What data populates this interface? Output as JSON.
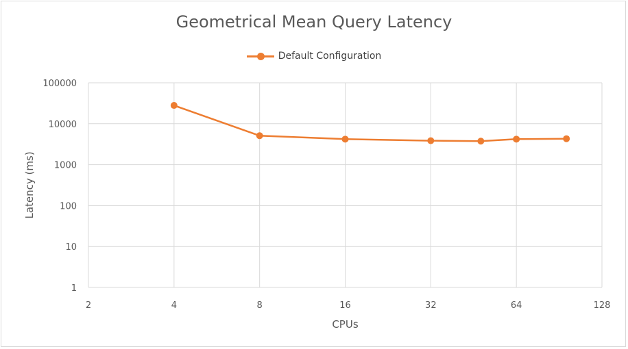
{
  "chart_data": {
    "type": "line",
    "title": "Geometrical Mean Query Latency",
    "xlabel": "CPUs",
    "ylabel": "Latency (ms)",
    "x_scale": "log2",
    "y_scale": "log10",
    "xlim": [
      2,
      128
    ],
    "ylim": [
      1,
      100000
    ],
    "x_ticks": [
      "2",
      "4",
      "8",
      "16",
      "32",
      "64",
      "128"
    ],
    "y_ticks": [
      "1",
      "10",
      "100",
      "1000",
      "10000",
      "100000"
    ],
    "grid": true,
    "legend_position": "top",
    "series": [
      {
        "name": "Default Configuration",
        "color": "#ed7d31",
        "x": [
          4,
          8,
          16,
          32,
          48,
          64,
          96
        ],
        "y": [
          28000,
          5100,
          4200,
          3850,
          3750,
          4200,
          4300
        ]
      }
    ]
  }
}
